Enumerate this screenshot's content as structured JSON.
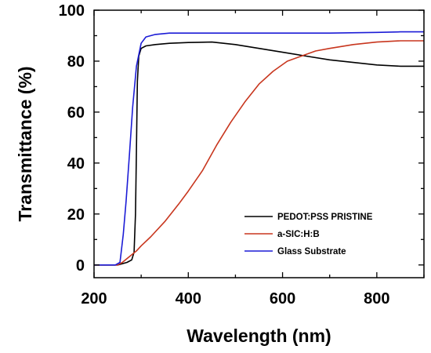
{
  "chart_data": {
    "type": "line",
    "title": "",
    "xlabel": "Wavelength (nm)",
    "ylabel": "Transmittance (%)",
    "xlim": [
      200,
      900
    ],
    "ylim": [
      -5,
      100
    ],
    "xticks": [
      200,
      400,
      600,
      800
    ],
    "yticks": [
      0,
      20,
      40,
      60,
      80,
      100
    ],
    "grid": false,
    "legend_position": "bottom-right",
    "series": [
      {
        "name": "PEDOT:PSS PRISTINE",
        "color": "#000000",
        "x": [
          200,
          250,
          270,
          280,
          285,
          288,
          290,
          292,
          295,
          300,
          310,
          330,
          360,
          400,
          450,
          500,
          550,
          600,
          650,
          700,
          750,
          800,
          850,
          900
        ],
        "y": [
          0,
          0,
          1,
          2,
          5,
          20,
          45,
          72,
          82,
          85,
          86,
          86.5,
          87,
          87.3,
          87.5,
          86.5,
          85,
          83.5,
          82,
          80.5,
          79.5,
          78.5,
          78,
          78
        ]
      },
      {
        "name": "a-SIC:H:B",
        "color": "#c8361e",
        "x": [
          200,
          250,
          260,
          270,
          280,
          290,
          300,
          320,
          350,
          380,
          400,
          430,
          460,
          490,
          520,
          550,
          580,
          610,
          640,
          670,
          700,
          750,
          800,
          850,
          900
        ],
        "y": [
          0,
          0,
          1,
          2.5,
          4,
          5.5,
          7.5,
          11,
          17,
          24,
          29,
          37,
          47,
          56,
          64,
          71,
          76,
          80,
          82,
          84,
          85,
          86.5,
          87.5,
          88,
          88
        ]
      },
      {
        "name": "Glass Substrate",
        "color": "#1c1cd6",
        "x": [
          200,
          245,
          255,
          262,
          268,
          275,
          282,
          290,
          300,
          310,
          330,
          360,
          400,
          450,
          500,
          600,
          700,
          800,
          850,
          900
        ],
        "y": [
          0,
          0,
          1,
          12,
          25,
          43,
          62,
          78,
          87,
          89.5,
          90.5,
          91,
          91,
          91,
          91,
          91,
          91,
          91.3,
          91.5,
          91.5
        ]
      }
    ]
  }
}
